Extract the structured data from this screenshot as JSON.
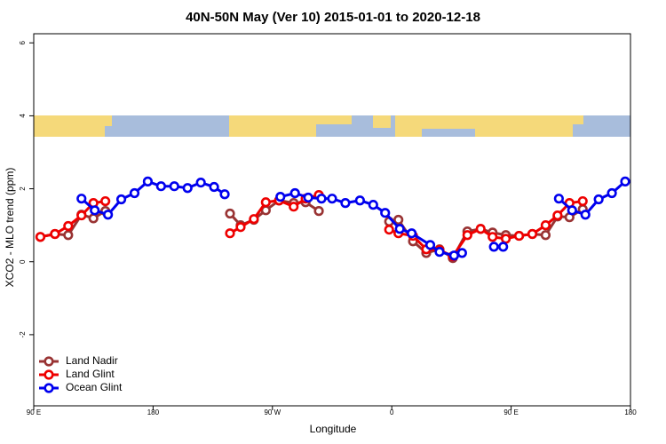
{
  "chart_data": {
    "type": "line",
    "title": "40N-50N May (Ver 10)   2015-01-01 to 2020-12-18",
    "x_label": "Longitude",
    "y_label": "XCO2 - MLO trend (ppm)",
    "xlim": [
      90,
      540
    ],
    "xticks": [
      {
        "value": 90,
        "label": "90 E"
      },
      {
        "value": 180,
        "label": "180"
      },
      {
        "value": 270,
        "label": "90 W"
      },
      {
        "value": 360,
        "label": "0"
      },
      {
        "value": 450,
        "label": "90 E"
      },
      {
        "value": 540,
        "label": "180"
      }
    ],
    "ylim": [
      -3.95,
      6.25
    ],
    "yticks": [
      -2,
      0,
      2,
      4,
      6
    ],
    "legend": "lower left",
    "series": [
      {
        "name": "Land Nadir",
        "color": "#993333",
        "x": [
          95,
          106,
          116,
          126,
          135,
          144,
          null,
          238,
          246,
          256,
          265,
          275,
          286,
          295,
          305,
          null,
          358,
          365,
          376,
          386,
          396,
          406,
          417,
          427,
          436,
          446,
          456,
          466,
          476,
          485,
          494,
          504
        ],
        "values": [
          0.68,
          0.76,
          0.73,
          1.29,
          1.19,
          1.39,
          null,
          1.32,
          1.0,
          1.15,
          1.41,
          1.68,
          1.61,
          1.63,
          1.39,
          null,
          1.1,
          1.15,
          0.56,
          0.24,
          0.34,
          0.1,
          0.83,
          0.9,
          0.8,
          0.73,
          0.71,
          0.76,
          0.73,
          1.24,
          1.22,
          1.44
        ]
      },
      {
        "name": "Land Glint",
        "color": "#ee0000",
        "x": [
          95,
          106,
          116,
          126,
          135,
          144,
          null,
          238,
          246,
          256,
          265,
          275,
          286,
          295,
          305,
          null,
          358,
          365,
          376,
          386,
          396,
          406,
          417,
          427,
          436,
          446,
          456,
          466,
          476,
          485,
          494,
          504
        ],
        "values": [
          0.68,
          0.76,
          0.98,
          1.27,
          1.61,
          1.66,
          null,
          0.78,
          0.95,
          1.17,
          1.63,
          1.68,
          1.51,
          1.73,
          1.83,
          null,
          0.88,
          0.78,
          0.71,
          0.34,
          0.32,
          0.15,
          0.73,
          0.9,
          0.68,
          0.63,
          0.71,
          0.76,
          1.0,
          1.27,
          1.61,
          1.66
        ]
      },
      {
        "name": "Ocean Glint",
        "color": "#0000ee",
        "x": [
          126,
          136,
          146,
          156,
          166,
          176,
          186,
          196,
          206,
          216,
          226,
          234,
          null,
          276,
          287,
          297,
          307,
          315,
          325,
          336,
          346,
          355,
          366,
          375,
          389,
          396,
          407,
          413,
          null,
          437,
          444,
          null,
          486,
          496,
          506,
          516,
          526,
          536
        ],
        "values": [
          1.73,
          1.41,
          1.29,
          1.71,
          1.88,
          2.2,
          2.07,
          2.07,
          2.02,
          2.17,
          2.05,
          1.85,
          null,
          1.78,
          1.88,
          1.76,
          1.73,
          1.73,
          1.61,
          1.68,
          1.56,
          1.34,
          0.9,
          0.78,
          0.46,
          0.27,
          0.17,
          0.24,
          null,
          0.41,
          0.41,
          null,
          1.73,
          1.41,
          1.29,
          1.71,
          1.88,
          2.2
        ]
      }
    ]
  }
}
